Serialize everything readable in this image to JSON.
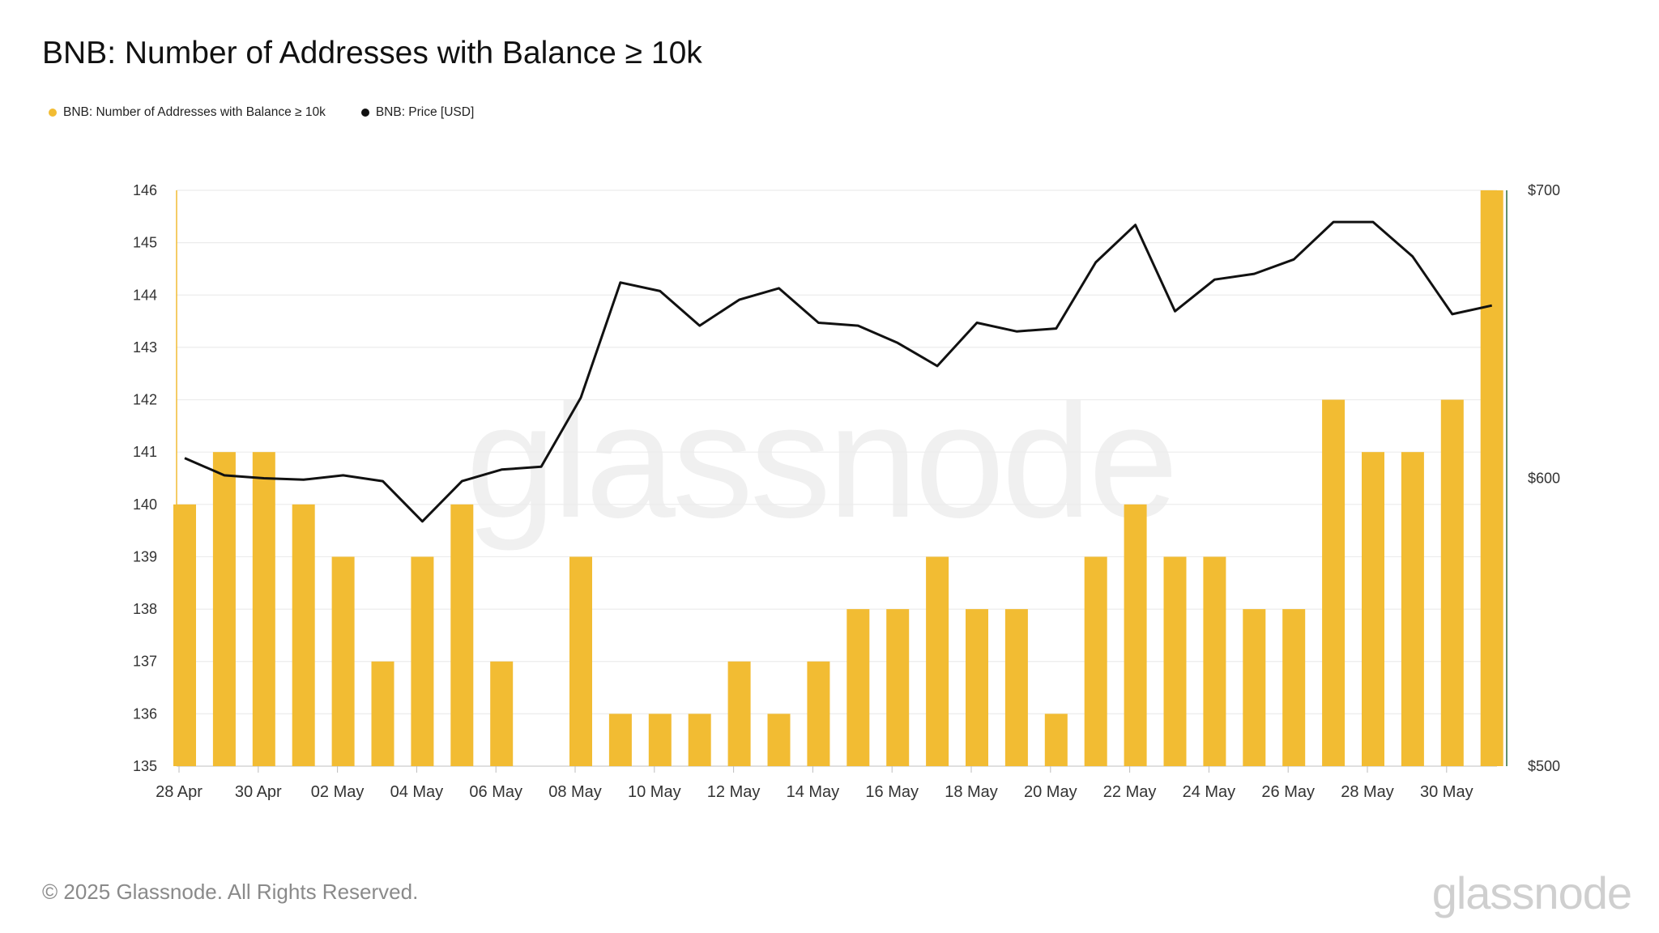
{
  "colors": {
    "bar": "#F2BC33",
    "price_line": "#111111",
    "grid": "#ececec",
    "left_axis_line": "#F2BC33",
    "right_axis_line": "#2f6b3d",
    "tick_text": "#333333"
  },
  "title": "BNB: Number of Addresses with Balance ≥ 10k",
  "legend": [
    {
      "label": "BNB: Number of Addresses with Balance ≥ 10k",
      "color": "#F2BC33"
    },
    {
      "label": "BNB: Price [USD]",
      "color": "#111111"
    }
  ],
  "watermark": "glassnode",
  "footer": {
    "copyright": "© 2025 Glassnode. All Rights Reserved.",
    "logo": "glassnode"
  },
  "chart_data": {
    "type": "bar",
    "title": "BNB: Number of Addresses with Balance ≥ 10k",
    "categories": [
      "28 Apr",
      "29 Apr",
      "30 Apr",
      "01 May",
      "02 May",
      "03 May",
      "04 May",
      "05 May",
      "06 May",
      "07 May",
      "08 May",
      "09 May",
      "10 May",
      "11 May",
      "12 May",
      "13 May",
      "14 May",
      "15 May",
      "16 May",
      "17 May",
      "18 May",
      "19 May",
      "20 May",
      "21 May",
      "22 May",
      "23 May",
      "24 May",
      "25 May",
      "26 May",
      "27 May",
      "28 May",
      "29 May",
      "30 May",
      "31 May"
    ],
    "series": [
      {
        "name": "BNB: Number of Addresses with Balance ≥ 10k",
        "type": "bar",
        "axis": "left",
        "values": [
          140,
          141,
          141,
          140,
          139,
          137,
          139,
          140,
          137,
          135,
          139,
          136,
          136,
          136,
          137,
          136,
          137,
          138,
          138,
          139,
          138,
          138,
          136,
          139,
          140,
          139,
          139,
          138,
          138,
          142,
          141,
          141,
          142,
          146
        ]
      },
      {
        "name": "BNB: Price [USD]",
        "type": "line",
        "axis": "right",
        "values": [
          607,
          601,
          600,
          599.5,
          601,
          599,
          585,
          599,
          603,
          604,
          628,
          668,
          665,
          653,
          662,
          666,
          654,
          653,
          647,
          639,
          654,
          651,
          652,
          675,
          688,
          658,
          669,
          671,
          676,
          689,
          689,
          677,
          657,
          660
        ]
      }
    ],
    "x_tick_labels": [
      "28 Apr",
      "30 Apr",
      "02 May",
      "04 May",
      "06 May",
      "08 May",
      "10 May",
      "12 May",
      "14 May",
      "16 May",
      "18 May",
      "20 May",
      "22 May",
      "24 May",
      "26 May",
      "28 May",
      "30 May"
    ],
    "left_axis": {
      "ticks": [
        "135",
        "136",
        "137",
        "138",
        "139",
        "140",
        "141",
        "142",
        "143",
        "144",
        "145",
        "146"
      ],
      "ylim": [
        135,
        146
      ]
    },
    "right_axis": {
      "ticks": [
        "$500",
        "$600",
        "$700"
      ],
      "ylim": [
        500,
        700
      ]
    },
    "grid": true,
    "legend_position": "top-left"
  }
}
